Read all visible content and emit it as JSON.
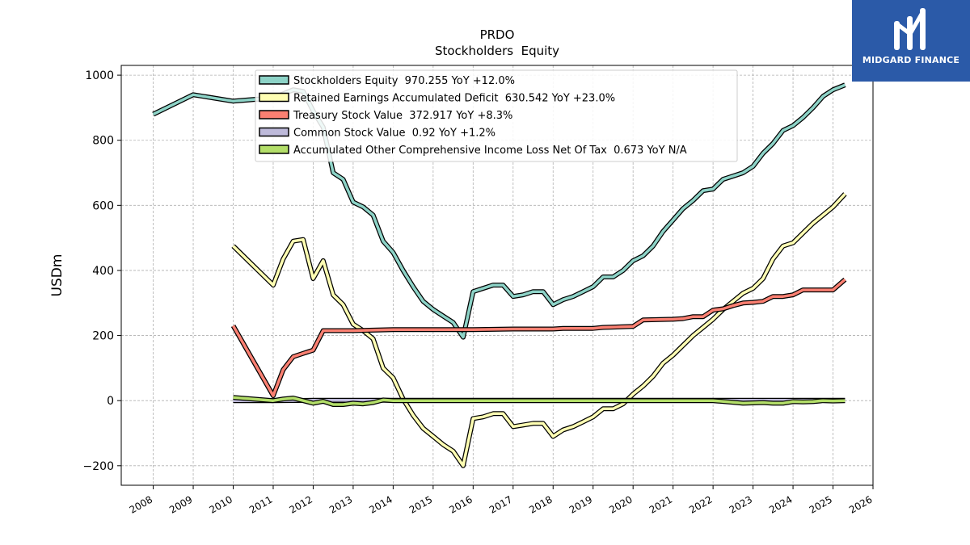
{
  "brand": {
    "name": "MIDGARD FINANCE",
    "color": "#2b5aa8"
  },
  "chart_data": {
    "type": "line",
    "title": "PRDO",
    "subtitle": "Stockholders  Equity",
    "xlabel": "",
    "ylabel": "USDm",
    "xlim": [
      2007.2,
      2026.0
    ],
    "ylim": [
      -260,
      1030
    ],
    "xticks": [
      2008,
      2009,
      2010,
      2011,
      2012,
      2013,
      2014,
      2015,
      2016,
      2017,
      2018,
      2019,
      2020,
      2021,
      2022,
      2023,
      2024,
      2025,
      2026
    ],
    "xtick_labels": [
      "2008",
      "2009",
      "2010",
      "2011",
      "2012",
      "2013",
      "2014",
      "2015",
      "2016",
      "2017",
      "2018",
      "2019",
      "2020",
      "2021",
      "2022",
      "2023",
      "2024",
      "2025",
      "2026"
    ],
    "yticks": [
      -200,
      0,
      200,
      400,
      600,
      800,
      1000
    ],
    "ytick_labels": [
      "−200",
      "0",
      "200",
      "400",
      "600",
      "800",
      "1000"
    ],
    "grid": true,
    "legend_position": "top-center",
    "series": [
      {
        "name": "Stockholders Equity  970.255 YoY +12.0%",
        "color": "#8dd3c7",
        "points": [
          [
            2008.0,
            880
          ],
          [
            2009.0,
            940
          ],
          [
            2010.0,
            920
          ],
          [
            2011.0,
            930
          ],
          [
            2011.5,
            955
          ],
          [
            2011.75,
            950
          ],
          [
            2012.0,
            890
          ],
          [
            2012.25,
            840
          ],
          [
            2012.5,
            700
          ],
          [
            2012.75,
            680
          ],
          [
            2013.0,
            610
          ],
          [
            2013.25,
            595
          ],
          [
            2013.5,
            570
          ],
          [
            2013.75,
            490
          ],
          [
            2014.0,
            455
          ],
          [
            2014.25,
            400
          ],
          [
            2014.5,
            350
          ],
          [
            2014.75,
            305
          ],
          [
            2015.0,
            280
          ],
          [
            2015.25,
            260
          ],
          [
            2015.5,
            240
          ],
          [
            2015.75,
            195
          ],
          [
            2016.0,
            335
          ],
          [
            2016.25,
            345
          ],
          [
            2016.5,
            355
          ],
          [
            2016.75,
            355
          ],
          [
            2017.0,
            320
          ],
          [
            2017.25,
            325
          ],
          [
            2017.5,
            335
          ],
          [
            2017.75,
            335
          ],
          [
            2018.0,
            295
          ],
          [
            2018.25,
            310
          ],
          [
            2018.5,
            320
          ],
          [
            2018.75,
            335
          ],
          [
            2019.0,
            350
          ],
          [
            2019.25,
            380
          ],
          [
            2019.5,
            380
          ],
          [
            2019.75,
            400
          ],
          [
            2020.0,
            430
          ],
          [
            2020.25,
            445
          ],
          [
            2020.5,
            475
          ],
          [
            2020.75,
            520
          ],
          [
            2021.0,
            555
          ],
          [
            2021.25,
            590
          ],
          [
            2021.5,
            615
          ],
          [
            2021.75,
            645
          ],
          [
            2022.0,
            650
          ],
          [
            2022.25,
            680
          ],
          [
            2022.5,
            690
          ],
          [
            2022.75,
            700
          ],
          [
            2023.0,
            720
          ],
          [
            2023.25,
            760
          ],
          [
            2023.5,
            790
          ],
          [
            2023.75,
            830
          ],
          [
            2024.0,
            845
          ],
          [
            2024.25,
            870
          ],
          [
            2024.5,
            900
          ],
          [
            2024.75,
            935
          ],
          [
            2025.0,
            955
          ],
          [
            2025.3,
            970
          ]
        ]
      },
      {
        "name": "Retained Earnings Accumulated Deficit  630.542 YoY +23.0%",
        "color": "#ffffb3",
        "points": [
          [
            2010.0,
            475
          ],
          [
            2011.0,
            355
          ],
          [
            2011.25,
            435
          ],
          [
            2011.5,
            490
          ],
          [
            2011.75,
            495
          ],
          [
            2012.0,
            375
          ],
          [
            2012.25,
            430
          ],
          [
            2012.5,
            325
          ],
          [
            2012.75,
            295
          ],
          [
            2013.0,
            235
          ],
          [
            2013.25,
            215
          ],
          [
            2013.5,
            190
          ],
          [
            2013.75,
            100
          ],
          [
            2014.0,
            70
          ],
          [
            2014.25,
            5
          ],
          [
            2014.5,
            -45
          ],
          [
            2014.75,
            -85
          ],
          [
            2015.0,
            -110
          ],
          [
            2015.25,
            -135
          ],
          [
            2015.5,
            -155
          ],
          [
            2015.75,
            -200
          ],
          [
            2016.0,
            -55
          ],
          [
            2016.25,
            -50
          ],
          [
            2016.5,
            -40
          ],
          [
            2016.75,
            -40
          ],
          [
            2017.0,
            -80
          ],
          [
            2017.25,
            -75
          ],
          [
            2017.5,
            -70
          ],
          [
            2017.75,
            -70
          ],
          [
            2018.0,
            -110
          ],
          [
            2018.25,
            -90
          ],
          [
            2018.5,
            -80
          ],
          [
            2018.75,
            -65
          ],
          [
            2019.0,
            -50
          ],
          [
            2019.25,
            -25
          ],
          [
            2019.5,
            -25
          ],
          [
            2019.75,
            -10
          ],
          [
            2020.0,
            20
          ],
          [
            2020.25,
            45
          ],
          [
            2020.5,
            75
          ],
          [
            2020.75,
            115
          ],
          [
            2021.0,
            140
          ],
          [
            2021.25,
            170
          ],
          [
            2021.5,
            200
          ],
          [
            2021.75,
            225
          ],
          [
            2022.0,
            250
          ],
          [
            2022.25,
            280
          ],
          [
            2022.5,
            305
          ],
          [
            2022.75,
            330
          ],
          [
            2023.0,
            345
          ],
          [
            2023.25,
            375
          ],
          [
            2023.5,
            435
          ],
          [
            2023.75,
            475
          ],
          [
            2024.0,
            485
          ],
          [
            2024.25,
            515
          ],
          [
            2024.5,
            545
          ],
          [
            2024.75,
            570
          ],
          [
            2025.0,
            595
          ],
          [
            2025.3,
            635
          ]
        ]
      },
      {
        "name": "Treasury Stock Value  372.917 YoY +8.3%",
        "color": "#fb8072",
        "points": [
          [
            2010.0,
            230
          ],
          [
            2011.0,
            15
          ],
          [
            2011.25,
            95
          ],
          [
            2011.5,
            135
          ],
          [
            2011.75,
            145
          ],
          [
            2012.0,
            155
          ],
          [
            2012.25,
            215
          ],
          [
            2012.5,
            215
          ],
          [
            2013.0,
            215
          ],
          [
            2014.0,
            218
          ],
          [
            2015.0,
            218
          ],
          [
            2016.0,
            218
          ],
          [
            2017.0,
            220
          ],
          [
            2018.0,
            220
          ],
          [
            2018.25,
            222
          ],
          [
            2019.0,
            222
          ],
          [
            2019.25,
            225
          ],
          [
            2020.0,
            228
          ],
          [
            2020.25,
            248
          ],
          [
            2021.0,
            250
          ],
          [
            2021.25,
            252
          ],
          [
            2021.5,
            258
          ],
          [
            2021.75,
            258
          ],
          [
            2022.0,
            278
          ],
          [
            2022.25,
            282
          ],
          [
            2022.5,
            292
          ],
          [
            2022.75,
            300
          ],
          [
            2023.0,
            302
          ],
          [
            2023.25,
            305
          ],
          [
            2023.5,
            320
          ],
          [
            2023.75,
            320
          ],
          [
            2024.0,
            325
          ],
          [
            2024.25,
            340
          ],
          [
            2025.0,
            340
          ],
          [
            2025.3,
            372
          ]
        ]
      },
      {
        "name": "Common Stock Value  0.92 YoY +1.2%",
        "color": "#bebada",
        "points": [
          [
            2010.0,
            0
          ],
          [
            2011.0,
            0
          ],
          [
            2012.0,
            1
          ],
          [
            2013.0,
            1
          ],
          [
            2014.0,
            1
          ],
          [
            2015.0,
            1
          ],
          [
            2016.0,
            1
          ],
          [
            2017.0,
            1
          ],
          [
            2018.0,
            1
          ],
          [
            2019.0,
            1
          ],
          [
            2020.0,
            1
          ],
          [
            2021.0,
            1
          ],
          [
            2022.0,
            1
          ],
          [
            2023.0,
            1
          ],
          [
            2024.0,
            1
          ],
          [
            2025.0,
            1
          ],
          [
            2025.3,
            1
          ]
        ]
      },
      {
        "name": "Accumulated Other Comprehensive Income Loss Net Of Tax  0.673 YoY N/A",
        "color": "#b3de69",
        "points": [
          [
            2010.0,
            10
          ],
          [
            2011.0,
            0
          ],
          [
            2011.25,
            5
          ],
          [
            2011.5,
            8
          ],
          [
            2011.75,
            0
          ],
          [
            2012.0,
            -8
          ],
          [
            2012.25,
            -2
          ],
          [
            2012.5,
            -12
          ],
          [
            2012.75,
            -12
          ],
          [
            2013.0,
            -8
          ],
          [
            2013.25,
            -10
          ],
          [
            2013.5,
            -6
          ],
          [
            2013.75,
            2
          ],
          [
            2014.0,
            0
          ],
          [
            2014.5,
            0
          ],
          [
            2015.0,
            0
          ],
          [
            2016.0,
            0
          ],
          [
            2017.0,
            0
          ],
          [
            2018.0,
            0
          ],
          [
            2019.0,
            0
          ],
          [
            2020.0,
            0
          ],
          [
            2021.0,
            0
          ],
          [
            2022.0,
            0
          ],
          [
            2022.5,
            -5
          ],
          [
            2022.75,
            -8
          ],
          [
            2023.0,
            -7
          ],
          [
            2023.25,
            -6
          ],
          [
            2023.5,
            -8
          ],
          [
            2023.75,
            -8
          ],
          [
            2024.0,
            -3
          ],
          [
            2024.25,
            -4
          ],
          [
            2024.5,
            -3
          ],
          [
            2024.75,
            0
          ],
          [
            2025.0,
            -1
          ],
          [
            2025.3,
            0
          ]
        ]
      }
    ]
  }
}
